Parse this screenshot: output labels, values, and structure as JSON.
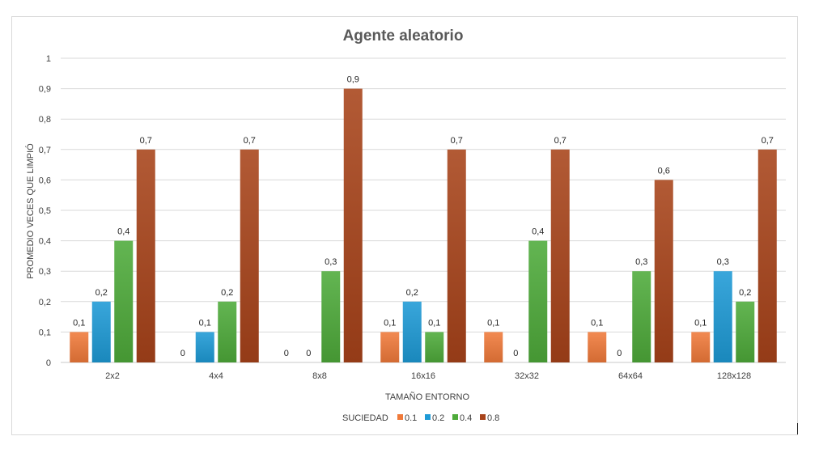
{
  "chart_data": {
    "type": "bar",
    "title": "Agente aleatorio",
    "xlabel": "TAMAÑO ENTORNO",
    "ylabel": "PROMEDIO VECES QUE LIMPIÓ",
    "ylim": [
      0,
      1
    ],
    "yticks": [
      "0",
      "0,1",
      "0,2",
      "0,3",
      "0,4",
      "0,5",
      "0,6",
      "0,7",
      "0,8",
      "0,9",
      "1"
    ],
    "grid": true,
    "legend_title": "SUCIEDAD",
    "legend_position": "bottom",
    "categories": [
      "2x2",
      "4x4",
      "8x8",
      "16x16",
      "32x32",
      "64x64",
      "128x128"
    ],
    "series": [
      {
        "name": "0.1",
        "color": "#f07a3a",
        "values": [
          0.1,
          0,
          0,
          0.1,
          0.1,
          0.1,
          0.1
        ],
        "labels": [
          "0,1",
          "0",
          "0",
          "0,1",
          "0,1",
          "0,1",
          "0,1"
        ]
      },
      {
        "name": "0.2",
        "color": "#1e9ad6",
        "values": [
          0.2,
          0.1,
          0,
          0.2,
          0,
          0,
          0.3
        ],
        "labels": [
          "0,2",
          "0,1",
          "0",
          "0,2",
          "0",
          "0",
          "0,3"
        ]
      },
      {
        "name": "0.4",
        "color": "#4eab3a",
        "values": [
          0.4,
          0.2,
          0.3,
          0.1,
          0.4,
          0.3,
          0.2
        ],
        "labels": [
          "0,4",
          "0,2",
          "0,3",
          "0,1",
          "0,4",
          "0,3",
          "0,2"
        ]
      },
      {
        "name": "0.8",
        "color": "#a8431a",
        "values": [
          0.7,
          0.7,
          0.9,
          0.7,
          0.7,
          0.6,
          0.7
        ],
        "labels": [
          "0,7",
          "0,7",
          "0,9",
          "0,7",
          "0,7",
          "0,6",
          "0,7"
        ]
      }
    ]
  }
}
